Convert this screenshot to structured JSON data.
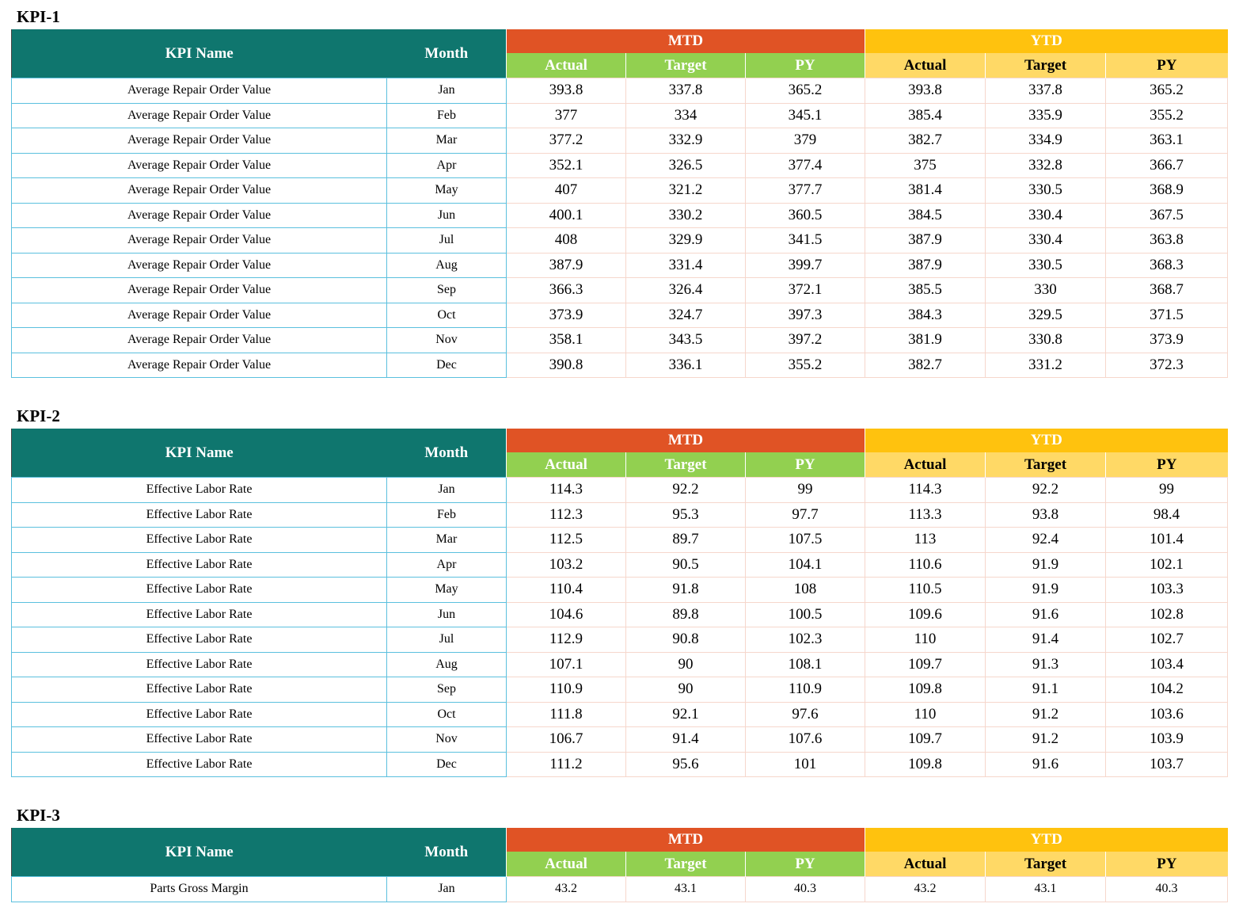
{
  "headers": {
    "kpi_name": "KPI Name",
    "month": "Month",
    "mtd": "MTD",
    "ytd": "YTD",
    "actual": "Actual",
    "target": "Target",
    "py": "PY"
  },
  "colors": {
    "header_teal": "#0f766e",
    "mtd_orange": "#e05325",
    "ytd_yellow": "#ffc20e",
    "mtd_sub_green": "#92d050",
    "ytd_sub_yellow": "#ffd966"
  },
  "sections": [
    {
      "title": "KPI-1",
      "kpi_name": "Average Repair Order Value",
      "rows": [
        [
          "Jan",
          "393.8",
          "337.8",
          "365.2",
          "393.8",
          "337.8",
          "365.2"
        ],
        [
          "Feb",
          "377",
          "334",
          "345.1",
          "385.4",
          "335.9",
          "355.2"
        ],
        [
          "Mar",
          "377.2",
          "332.9",
          "379",
          "382.7",
          "334.9",
          "363.1"
        ],
        [
          "Apr",
          "352.1",
          "326.5",
          "377.4",
          "375",
          "332.8",
          "366.7"
        ],
        [
          "May",
          "407",
          "321.2",
          "377.7",
          "381.4",
          "330.5",
          "368.9"
        ],
        [
          "Jun",
          "400.1",
          "330.2",
          "360.5",
          "384.5",
          "330.4",
          "367.5"
        ],
        [
          "Jul",
          "408",
          "329.9",
          "341.5",
          "387.9",
          "330.4",
          "363.8"
        ],
        [
          "Aug",
          "387.9",
          "331.4",
          "399.7",
          "387.9",
          "330.5",
          "368.3"
        ],
        [
          "Sep",
          "366.3",
          "326.4",
          "372.1",
          "385.5",
          "330",
          "368.7"
        ],
        [
          "Oct",
          "373.9",
          "324.7",
          "397.3",
          "384.3",
          "329.5",
          "371.5"
        ],
        [
          "Nov",
          "358.1",
          "343.5",
          "397.2",
          "381.9",
          "330.8",
          "373.9"
        ],
        [
          "Dec",
          "390.8",
          "336.1",
          "355.2",
          "382.7",
          "331.2",
          "372.3"
        ]
      ]
    },
    {
      "title": "KPI-2",
      "kpi_name": "Effective Labor Rate",
      "rows": [
        [
          "Jan",
          "114.3",
          "92.2",
          "99",
          "114.3",
          "92.2",
          "99"
        ],
        [
          "Feb",
          "112.3",
          "95.3",
          "97.7",
          "113.3",
          "93.8",
          "98.4"
        ],
        [
          "Mar",
          "112.5",
          "89.7",
          "107.5",
          "113",
          "92.4",
          "101.4"
        ],
        [
          "Apr",
          "103.2",
          "90.5",
          "104.1",
          "110.6",
          "91.9",
          "102.1"
        ],
        [
          "May",
          "110.4",
          "91.8",
          "108",
          "110.5",
          "91.9",
          "103.3"
        ],
        [
          "Jun",
          "104.6",
          "89.8",
          "100.5",
          "109.6",
          "91.6",
          "102.8"
        ],
        [
          "Jul",
          "112.9",
          "90.8",
          "102.3",
          "110",
          "91.4",
          "102.7"
        ],
        [
          "Aug",
          "107.1",
          "90",
          "108.1",
          "109.7",
          "91.3",
          "103.4"
        ],
        [
          "Sep",
          "110.9",
          "90",
          "110.9",
          "109.8",
          "91.1",
          "104.2"
        ],
        [
          "Oct",
          "111.8",
          "92.1",
          "97.6",
          "110",
          "91.2",
          "103.6"
        ],
        [
          "Nov",
          "106.7",
          "91.4",
          "107.6",
          "109.7",
          "91.2",
          "103.9"
        ],
        [
          "Dec",
          "111.2",
          "95.6",
          "101",
          "109.8",
          "91.6",
          "103.7"
        ]
      ]
    },
    {
      "title": "KPI-3",
      "kpi_name": "Parts Gross Margin",
      "rows": [
        [
          "Jan",
          "43.2",
          "43.1",
          "40.3",
          "43.2",
          "43.1",
          "40.3"
        ]
      ]
    }
  ]
}
